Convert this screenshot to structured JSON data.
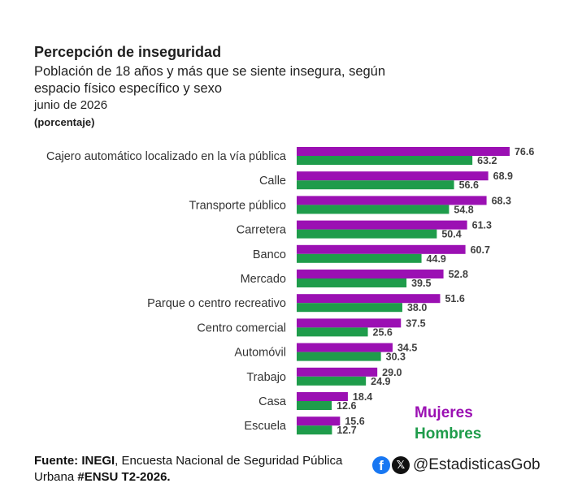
{
  "chart_data": {
    "type": "bar",
    "orientation": "horizontal",
    "title": "Percepción de inseguridad",
    "subtitle": "Población de 18 años y más que se siente insegura, según espacio físico específico y sexo",
    "period": "junio de 2026",
    "unit": "(porcentaje)",
    "categories": [
      "Cajero automático localizado en la vía pública",
      "Calle",
      "Transporte público",
      "Carretera",
      "Banco",
      "Mercado",
      "Parque o centro recreativo",
      "Centro comercial",
      "Automóvil",
      "Trabajo",
      "Casa",
      "Escuela"
    ],
    "series": [
      {
        "name": "Mujeres",
        "color": "#9b10b3",
        "values": [
          76.6,
          68.9,
          68.3,
          61.3,
          60.7,
          52.8,
          51.6,
          37.5,
          34.5,
          29.0,
          18.4,
          15.6
        ]
      },
      {
        "name": "Hombres",
        "color": "#1f9c4b",
        "values": [
          63.2,
          56.6,
          54.8,
          50.4,
          44.9,
          39.5,
          38.0,
          25.6,
          30.3,
          24.9,
          12.6,
          12.7
        ]
      }
    ],
    "xlim": [
      0,
      100
    ],
    "grid": false,
    "legend_position": "bottom-right"
  },
  "legend": {
    "women": "Mujeres",
    "men": "Hombres"
  },
  "source": {
    "prefix": "Fuente: INEGI",
    "text": ", Encuesta Nacional de Seguridad Pública Urbana ",
    "tag": "#ENSU T2-2026."
  },
  "social": {
    "facebook_icon": "facebook-icon",
    "x_icon": "x-logo-icon",
    "handle": "@EstadisticasGob"
  }
}
